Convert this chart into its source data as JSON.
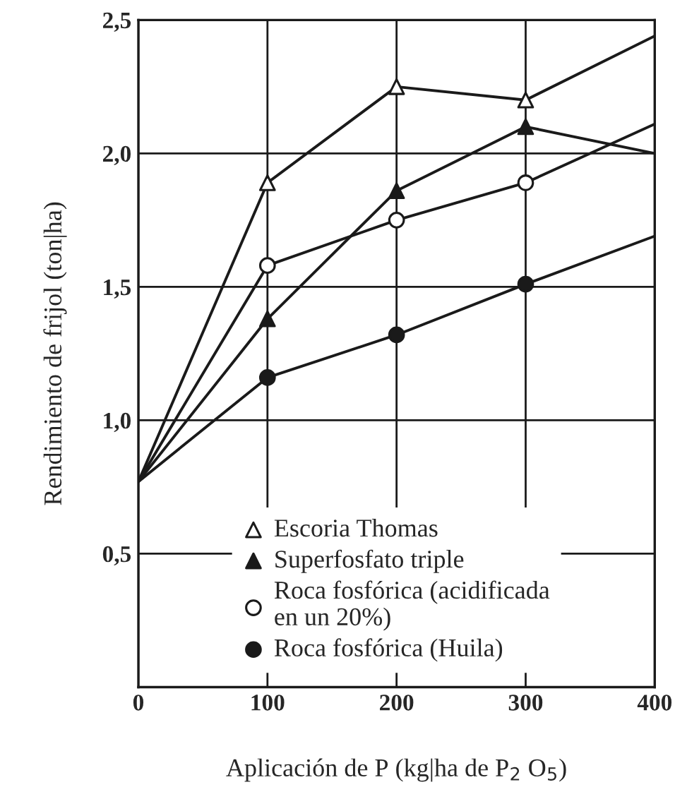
{
  "chart_data": {
    "type": "line",
    "xlabel": "Aplicación de P (kg|ha de P$_{2}$ O$_{5}$)",
    "ylabel": "Rendimiento de frijol (ton|ha)",
    "xlim": [
      0,
      400
    ],
    "xticks": [
      0,
      100,
      200,
      300,
      400
    ],
    "ylim": [
      0,
      2.5
    ],
    "yticks": [
      {
        "value": 0,
        "label": null
      },
      {
        "value": 0.5,
        "label": "0,5"
      },
      {
        "value": 1.0,
        "label": "1,0"
      },
      {
        "value": 1.5,
        "label": "1,5"
      },
      {
        "value": 2.0,
        "label": "2,0"
      },
      {
        "value": 2.5,
        "label": "2,5"
      }
    ],
    "grid": true,
    "legend": "bottom",
    "series": [
      {
        "marker": "none",
        "color": "#1a1a1a",
        "x": [
          0,
          100,
          200,
          300,
          400
        ],
        "values": [
          0.77,
          1.89,
          2.25,
          2.2,
          2.44
        ]
      },
      {
        "marker": "none",
        "color": "#1a1a1a",
        "x": [
          0,
          100,
          200,
          300,
          400
        ],
        "values": [
          0.77,
          1.38,
          1.86,
          2.1,
          2.0
        ]
      },
      {
        "marker": "none",
        "color": "#1a1a1a",
        "x": [
          0,
          100,
          200,
          300,
          400
        ],
        "values": [
          0.77,
          1.58,
          1.75,
          1.89,
          2.11
        ]
      },
      {
        "marker": "none",
        "color": "#1a1a1a",
        "x": [
          0,
          100,
          200,
          300,
          400
        ],
        "values": [
          0.77,
          1.16,
          1.32,
          1.51,
          1.69
        ]
      },
      {
        "type": "scatter",
        "name": "Escoria Thomas",
        "marker": "triangle",
        "color": "#ffffff",
        "x": [
          100,
          200,
          300
        ],
        "values": [
          1.89,
          2.25,
          2.2
        ]
      },
      {
        "type": "scatter",
        "name": "Superfosfato triple",
        "marker": "triangle",
        "color": "#1a1a1a",
        "x": [
          100,
          200,
          300
        ],
        "values": [
          1.38,
          1.86,
          2.1
        ]
      },
      {
        "type": "scatter",
        "name": "Roca fosfórica (acidificada\nen un 20%)",
        "marker": "circle",
        "color": "#ffffff",
        "x": [
          100,
          200,
          300
        ],
        "values": [
          1.58,
          1.75,
          1.89
        ]
      },
      {
        "type": "scatter",
        "name": "Roca fosfórica (Huila)",
        "marker": "circle",
        "color": "#1a1a1a",
        "x": [
          100,
          200,
          300
        ],
        "values": [
          1.16,
          1.32,
          1.51
        ]
      }
    ]
  }
}
